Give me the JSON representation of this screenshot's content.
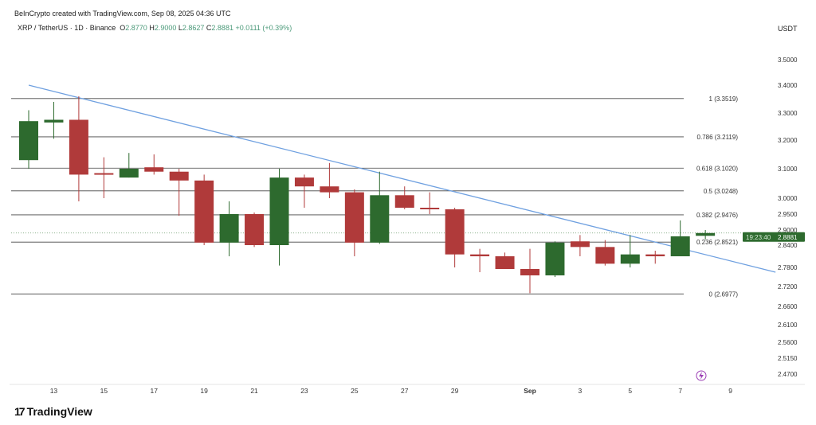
{
  "header": {
    "credit": "BeInCrypto created with TradingView.com, Sep 08, 2025 04:36 UTC",
    "symbol": "XRP / TetherUS · 1D · Binance",
    "o_label": "O",
    "o": "2.8770",
    "h_label": "H",
    "h": "2.9000",
    "l_label": "L",
    "l": "2.8627",
    "c_label": "C",
    "c": "2.8881",
    "change": "+0.0111 (+0.39%)",
    "currency": "USDT"
  },
  "logo": {
    "mark": "17",
    "text": "TradingView"
  },
  "colors": {
    "up": "#2d6a2e",
    "down": "#b03a3a",
    "trend": "#6fa0e0",
    "fib": "#444444",
    "alert": "#9c3fb5"
  },
  "chart_data": {
    "type": "candlestick",
    "title": "XRP / TetherUS · 1D · Binance",
    "ylabel": "USDT",
    "ylim": [
      2.47,
      3.5
    ],
    "y_ticks": [
      "3.5000",
      "3.4000",
      "3.3000",
      "3.2000",
      "3.1000",
      "3.0000",
      "2.9500",
      "2.9000",
      "2.8400",
      "2.7800",
      "2.7200",
      "2.6600",
      "2.6100",
      "2.5600",
      "2.5150",
      "2.4700"
    ],
    "x_ticks": [
      {
        "label": "13",
        "day": 1
      },
      {
        "label": "15",
        "day": 3
      },
      {
        "label": "17",
        "day": 5
      },
      {
        "label": "19",
        "day": 7
      },
      {
        "label": "21",
        "day": 9
      },
      {
        "label": "23",
        "day": 11
      },
      {
        "label": "25",
        "day": 13
      },
      {
        "label": "27",
        "day": 15
      },
      {
        "label": "29",
        "day": 17
      },
      {
        "label": "Sep",
        "day": 20
      },
      {
        "label": "3",
        "day": 22
      },
      {
        "label": "5",
        "day": 24
      },
      {
        "label": "7",
        "day": 26
      },
      {
        "label": "9",
        "day": 28
      }
    ],
    "candles": [
      {
        "date": "Aug 12",
        "o": 3.13,
        "h": 3.31,
        "l": 3.1,
        "c": 3.27
      },
      {
        "date": "Aug 13",
        "o": 3.265,
        "h": 3.34,
        "l": 3.205,
        "c": 3.275
      },
      {
        "date": "Aug 14",
        "o": 3.275,
        "h": 3.36,
        "l": 2.99,
        "c": 3.08
      },
      {
        "date": "Aug 15",
        "o": 3.085,
        "h": 3.14,
        "l": 3.0,
        "c": 3.08
      },
      {
        "date": "Aug 16",
        "o": 3.07,
        "h": 3.155,
        "l": 3.07,
        "c": 3.1
      },
      {
        "date": "Aug 17",
        "o": 3.105,
        "h": 3.15,
        "l": 3.08,
        "c": 3.09
      },
      {
        "date": "Aug 18",
        "o": 3.09,
        "h": 3.1,
        "l": 2.945,
        "c": 3.06
      },
      {
        "date": "Aug 19",
        "o": 3.06,
        "h": 3.08,
        "l": 2.84,
        "c": 2.85
      },
      {
        "date": "Aug 20",
        "o": 2.85,
        "h": 2.99,
        "l": 2.81,
        "c": 2.95
      },
      {
        "date": "Aug 21",
        "o": 2.95,
        "h": 2.955,
        "l": 2.835,
        "c": 2.84
      },
      {
        "date": "Aug 22",
        "o": 2.84,
        "h": 3.1,
        "l": 2.785,
        "c": 3.07
      },
      {
        "date": "Aug 23",
        "o": 3.07,
        "h": 3.08,
        "l": 2.97,
        "c": 3.04
      },
      {
        "date": "Aug 24",
        "o": 3.04,
        "h": 3.12,
        "l": 3.0,
        "c": 3.02
      },
      {
        "date": "Aug 25",
        "o": 3.02,
        "h": 3.03,
        "l": 2.81,
        "c": 2.85
      },
      {
        "date": "Aug 26",
        "o": 2.85,
        "h": 3.09,
        "l": 2.845,
        "c": 3.01
      },
      {
        "date": "Aug 27",
        "o": 3.01,
        "h": 3.04,
        "l": 2.965,
        "c": 2.97
      },
      {
        "date": "Aug 28",
        "o": 2.97,
        "h": 3.02,
        "l": 2.95,
        "c": 2.965
      },
      {
        "date": "Aug 29",
        "o": 2.965,
        "h": 2.97,
        "l": 2.78,
        "c": 2.815
      },
      {
        "date": "Aug 30",
        "o": 2.815,
        "h": 2.83,
        "l": 2.765,
        "c": 2.81
      },
      {
        "date": "Aug 31",
        "o": 2.81,
        "h": 2.82,
        "l": 2.775,
        "c": 2.775
      },
      {
        "date": "Sep 1",
        "o": 2.775,
        "h": 2.83,
        "l": 2.7,
        "c": 2.755
      },
      {
        "date": "Sep 2",
        "o": 2.755,
        "h": 2.855,
        "l": 2.75,
        "c": 2.85
      },
      {
        "date": "Sep 3",
        "o": 2.855,
        "h": 2.88,
        "l": 2.81,
        "c": 2.835
      },
      {
        "date": "Sep 4",
        "o": 2.835,
        "h": 2.86,
        "l": 2.785,
        "c": 2.79
      },
      {
        "date": "Sep 5",
        "o": 2.79,
        "h": 2.88,
        "l": 2.78,
        "c": 2.815
      },
      {
        "date": "Sep 6",
        "o": 2.815,
        "h": 2.825,
        "l": 2.79,
        "c": 2.81
      },
      {
        "date": "Sep 7",
        "o": 2.81,
        "h": 2.93,
        "l": 2.81,
        "c": 2.875
      },
      {
        "date": "Sep 8",
        "o": 2.877,
        "h": 2.9,
        "l": 2.8627,
        "c": 2.8881
      }
    ],
    "fib_levels": [
      {
        "label": "1 (3.3519)",
        "value": 3.3519
      },
      {
        "label": "0.786 (3.2119)",
        "value": 3.2119
      },
      {
        "label": "0.618 (3.1020)",
        "value": 3.102
      },
      {
        "label": "0.5 (3.0248)",
        "value": 3.0248
      },
      {
        "label": "0.382 (2.9476)",
        "value": 2.9476
      },
      {
        "label": "0.236 (2.8521)",
        "value": 2.8521
      },
      {
        "label": "0 (2.6977)",
        "value": 2.6977
      }
    ],
    "trendline": {
      "start": {
        "day": 0,
        "price": 3.4
      },
      "end": {
        "day": 29.8,
        "price": 2.765
      }
    },
    "last_price": {
      "value": 2.8881,
      "label": "2.8881",
      "countdown": "19:23:40"
    }
  }
}
